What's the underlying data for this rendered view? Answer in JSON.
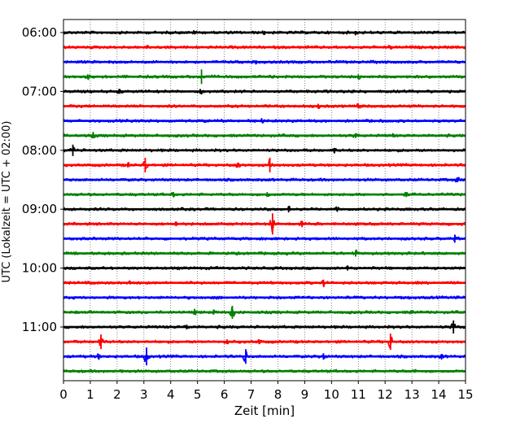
{
  "chart_data": {
    "type": "line",
    "subtype": "helicorder-seismogram",
    "xlabel": "Zeit  [min]",
    "ylabel": "UTC (Lokalzeit = UTC + 02:00)",
    "xlim": [
      0,
      15
    ],
    "x_ticks": [
      "0",
      "1",
      "2",
      "3",
      "4",
      "5",
      "6",
      "7",
      "8",
      "9",
      "10",
      "11",
      "12",
      "13",
      "14",
      "15"
    ],
    "vertical_grid": true,
    "y_ticks": [
      "06:00",
      "07:00",
      "08:00",
      "09:00",
      "10:00",
      "11:00"
    ],
    "colors": [
      "#000000",
      "#ff0000",
      "#0000ff",
      "#008000"
    ],
    "traces": [
      {
        "start": "06:00",
        "color": "#000000",
        "events": [
          {
            "t": 4.9,
            "amp": 2
          },
          {
            "t": 7.5,
            "amp": 2
          },
          {
            "t": 10.9,
            "amp": 2
          }
        ]
      },
      {
        "start": "06:15",
        "color": "#ff0000",
        "events": [
          {
            "t": 3.1,
            "amp": 2
          },
          {
            "t": 12.2,
            "amp": 2
          }
        ]
      },
      {
        "start": "06:30",
        "color": "#0000ff",
        "events": [
          {
            "t": 1.7,
            "amp": 2
          },
          {
            "t": 7.2,
            "amp": 2
          }
        ]
      },
      {
        "start": "06:45",
        "color": "#008000",
        "events": [
          {
            "t": 0.9,
            "amp": 3
          },
          {
            "t": 5.15,
            "amp": 9
          },
          {
            "t": 11.0,
            "amp": 3
          }
        ]
      },
      {
        "start": "07:00",
        "color": "#000000",
        "events": [
          {
            "t": 2.1,
            "amp": 3
          },
          {
            "t": 5.1,
            "amp": 3
          },
          {
            "t": 10.8,
            "amp": 2
          }
        ]
      },
      {
        "start": "07:15",
        "color": "#ff0000",
        "events": [
          {
            "t": 9.5,
            "amp": 3
          },
          {
            "t": 11.0,
            "amp": 3
          }
        ]
      },
      {
        "start": "07:30",
        "color": "#0000ff",
        "events": [
          {
            "t": 7.4,
            "amp": 2
          },
          {
            "t": 11.5,
            "amp": 2
          }
        ]
      },
      {
        "start": "07:45",
        "color": "#008000",
        "events": [
          {
            "t": 1.1,
            "amp": 3
          },
          {
            "t": 10.9,
            "amp": 3
          },
          {
            "t": 12.3,
            "amp": 2
          }
        ]
      },
      {
        "start": "08:00",
        "color": "#000000",
        "events": [
          {
            "t": 0.35,
            "amp": 7
          },
          {
            "t": 10.1,
            "amp": 3
          }
        ]
      },
      {
        "start": "08:15",
        "color": "#ff0000",
        "events": [
          {
            "t": 2.4,
            "amp": 3
          },
          {
            "t": 3.05,
            "amp": 9
          },
          {
            "t": 6.5,
            "amp": 3
          },
          {
            "t": 7.7,
            "amp": 9
          }
        ]
      },
      {
        "start": "08:30",
        "color": "#0000ff",
        "events": [
          {
            "t": 14.7,
            "amp": 3
          }
        ]
      },
      {
        "start": "08:45",
        "color": "#008000",
        "events": [
          {
            "t": 4.1,
            "amp": 3
          },
          {
            "t": 7.6,
            "amp": 3
          },
          {
            "t": 12.8,
            "amp": 3
          }
        ]
      },
      {
        "start": "09:00",
        "color": "#000000",
        "events": [
          {
            "t": 8.4,
            "amp": 4
          },
          {
            "t": 10.2,
            "amp": 2
          }
        ]
      },
      {
        "start": "09:15",
        "color": "#ff0000",
        "events": [
          {
            "t": 4.2,
            "amp": 3
          },
          {
            "t": 7.8,
            "amp": 13
          },
          {
            "t": 8.9,
            "amp": 4
          }
        ]
      },
      {
        "start": "09:30",
        "color": "#0000ff",
        "events": [
          {
            "t": 14.6,
            "amp": 5
          }
        ]
      },
      {
        "start": "09:45",
        "color": "#008000",
        "events": [
          {
            "t": 10.9,
            "amp": 4
          }
        ]
      },
      {
        "start": "10:00",
        "color": "#000000",
        "events": [
          {
            "t": 10.6,
            "amp": 3
          }
        ]
      },
      {
        "start": "10:15",
        "color": "#ff0000",
        "events": [
          {
            "t": 2.5,
            "amp": 2
          },
          {
            "t": 9.7,
            "amp": 4
          }
        ]
      },
      {
        "start": "10:30",
        "color": "#0000ff",
        "events": [
          {
            "t": 5.9,
            "amp": 2
          },
          {
            "t": 12.6,
            "amp": 2
          }
        ]
      },
      {
        "start": "10:45",
        "color": "#008000",
        "events": [
          {
            "t": 4.9,
            "amp": 3
          },
          {
            "t": 5.6,
            "amp": 3
          },
          {
            "t": 6.3,
            "amp": 8
          },
          {
            "t": 13.0,
            "amp": 2
          }
        ]
      },
      {
        "start": "11:00",
        "color": "#000000",
        "events": [
          {
            "t": 14.55,
            "amp": 8
          },
          {
            "t": 4.6,
            "amp": 3
          }
        ]
      },
      {
        "start": "11:15",
        "color": "#ff0000",
        "events": [
          {
            "t": 1.4,
            "amp": 9
          },
          {
            "t": 6.1,
            "amp": 3
          },
          {
            "t": 7.3,
            "amp": 3
          },
          {
            "t": 12.2,
            "amp": 10
          }
        ]
      },
      {
        "start": "11:30",
        "color": "#0000ff",
        "events": [
          {
            "t": 1.3,
            "amp": 3
          },
          {
            "t": 3.1,
            "amp": 11
          },
          {
            "t": 6.8,
            "amp": 9
          },
          {
            "t": 9.7,
            "amp": 4
          },
          {
            "t": 14.1,
            "amp": 3
          }
        ]
      },
      {
        "start": "11:45",
        "color": "#008000",
        "events": [
          {
            "t": 2.2,
            "amp": 2
          },
          {
            "t": 13.1,
            "amp": 2
          }
        ]
      }
    ]
  }
}
